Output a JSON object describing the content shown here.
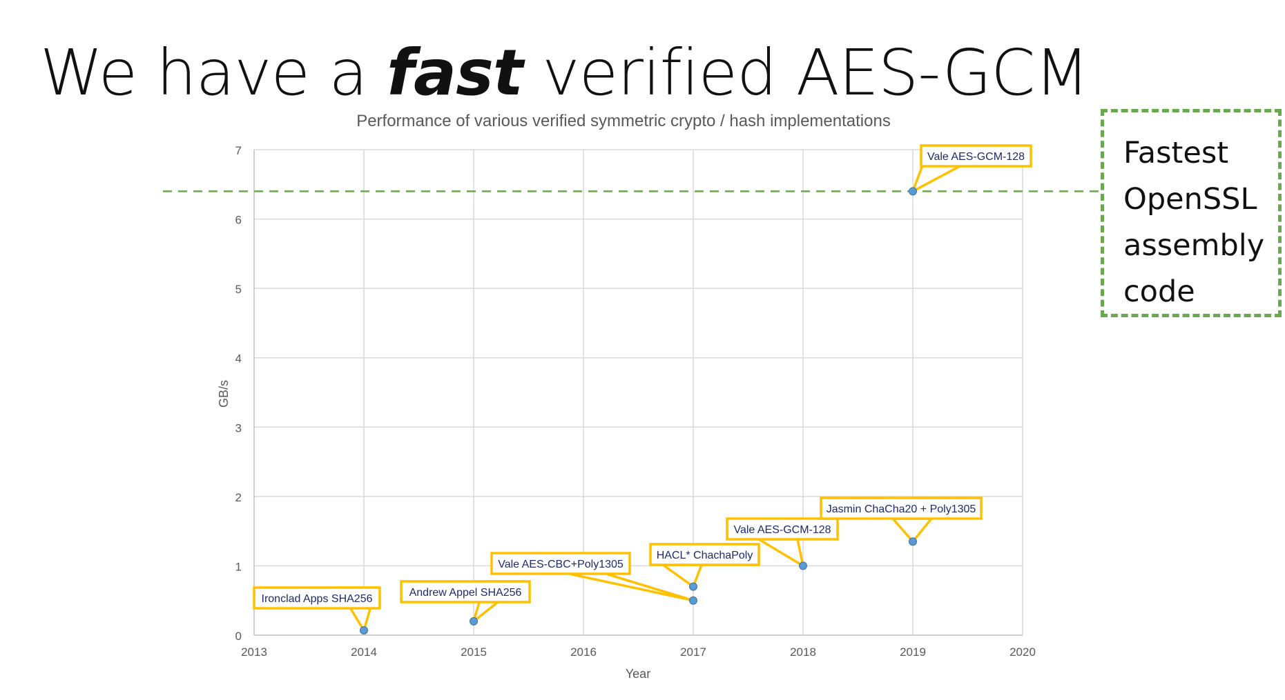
{
  "slide": {
    "title_before": "We have a ",
    "title_emphasis": "fast",
    "title_after": " verified AES-GCM"
  },
  "callout": {
    "lines": [
      "Fastest",
      "OpenSSL",
      "assembly",
      "code"
    ],
    "reference_value": 6.4,
    "border_color": "#6aa84f"
  },
  "chart_data": {
    "type": "scatter",
    "title": "Performance of various verified symmetric crypto / hash implementations",
    "xlabel": "Year",
    "ylabel": "GB/s",
    "xlim": [
      2013,
      2020
    ],
    "ylim": [
      0,
      7
    ],
    "x_ticks": [
      2013,
      2014,
      2015,
      2016,
      2017,
      2018,
      2019,
      2020
    ],
    "y_ticks": [
      0,
      1,
      2,
      3,
      4,
      5,
      6,
      7
    ],
    "grid": true,
    "point_color": "#5b9bd5",
    "label_border_color": "#ffc000",
    "label_text_color": "#1f2a6b",
    "points": [
      {
        "x": 2014,
        "y": 0.07,
        "label": "Ironclad Apps SHA256"
      },
      {
        "x": 2015,
        "y": 0.2,
        "label": "Andrew Appel SHA256"
      },
      {
        "x": 2017,
        "y": 0.5,
        "label": "Vale AES-CBC+Poly1305"
      },
      {
        "x": 2017,
        "y": 0.7,
        "label": "HACL* ChachaPoly"
      },
      {
        "x": 2018,
        "y": 1.0,
        "label": "Vale AES-GCM-128"
      },
      {
        "x": 2019,
        "y": 1.35,
        "label": "Jasmin ChaCha20 + Poly1305"
      },
      {
        "x": 2019,
        "y": 6.4,
        "label": "Vale AES-GCM-128"
      }
    ]
  }
}
